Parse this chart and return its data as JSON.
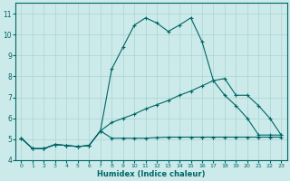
{
  "bg_color": "#cceaea",
  "grid_color": "#aad4d4",
  "line_color": "#006666",
  "x_label": "Humidex (Indice chaleur)",
  "xlim": [
    -0.5,
    23.5
  ],
  "ylim": [
    4,
    11.5
  ],
  "yticks": [
    4,
    5,
    6,
    7,
    8,
    9,
    10,
    11
  ],
  "xticks": [
    0,
    1,
    2,
    3,
    4,
    5,
    6,
    7,
    8,
    9,
    10,
    11,
    12,
    13,
    14,
    15,
    16,
    17,
    18,
    19,
    20,
    21,
    22,
    23
  ],
  "series1_x": [
    0,
    1,
    2,
    3,
    4,
    5,
    6,
    7,
    8,
    9,
    10,
    11,
    12,
    13,
    14,
    15,
    16,
    17,
    18,
    19,
    20,
    21,
    22,
    23
  ],
  "series1_y": [
    5.05,
    4.55,
    4.55,
    4.75,
    4.7,
    4.65,
    4.7,
    5.4,
    8.35,
    9.4,
    10.45,
    10.8,
    10.55,
    10.15,
    10.45,
    10.8,
    9.65,
    7.8,
    7.1,
    6.6,
    6.0,
    5.2,
    5.2,
    5.2
  ],
  "series2_x": [
    0,
    1,
    2,
    3,
    4,
    5,
    6,
    7,
    8,
    9,
    10,
    11,
    12,
    13,
    14,
    15,
    16,
    17,
    18,
    19,
    20,
    21,
    22,
    23
  ],
  "series2_y": [
    5.05,
    4.55,
    4.55,
    4.75,
    4.7,
    4.65,
    4.7,
    5.4,
    5.8,
    6.0,
    6.2,
    6.45,
    6.65,
    6.85,
    7.1,
    7.3,
    7.55,
    7.8,
    7.9,
    7.1,
    7.1,
    6.6,
    6.0,
    5.2
  ],
  "series3_x": [
    0,
    1,
    2,
    3,
    4,
    5,
    6,
    7,
    8,
    9,
    10,
    11,
    12,
    13,
    14,
    15,
    16,
    17,
    18,
    19,
    20,
    21,
    22,
    23
  ],
  "series3_y": [
    5.05,
    4.55,
    4.55,
    4.75,
    4.7,
    4.65,
    4.7,
    5.4,
    5.05,
    5.05,
    5.05,
    5.05,
    5.08,
    5.1,
    5.1,
    5.1,
    5.1,
    5.1,
    5.1,
    5.1,
    5.1,
    5.1,
    5.1,
    5.1
  ]
}
